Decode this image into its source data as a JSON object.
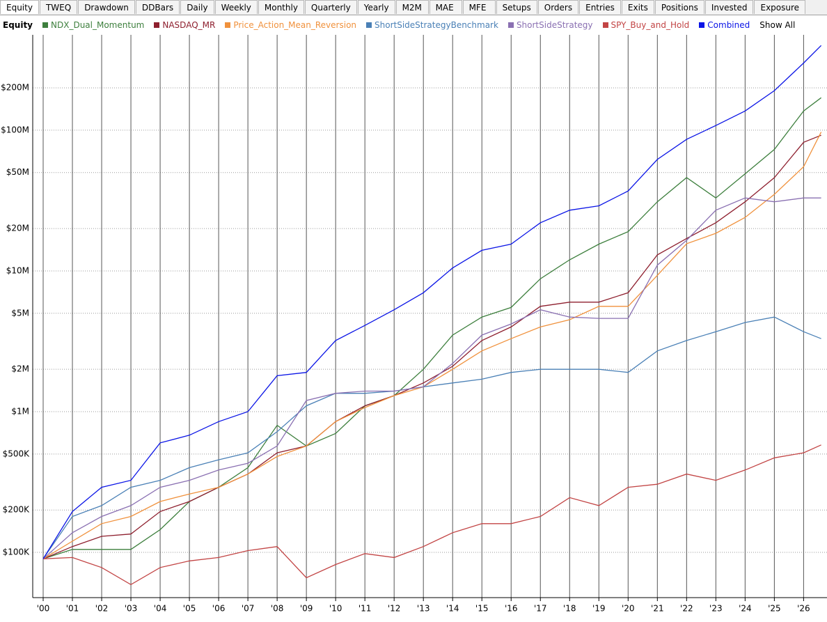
{
  "tabs": [
    "Equity",
    "TWEQ",
    "Drawdown",
    "DDBars",
    "Daily",
    "Weekly",
    "Monthly",
    "Quarterly",
    "Yearly",
    "M2M",
    "MAE",
    "MFE",
    "Setups",
    "Orders",
    "Entries",
    "Exits",
    "Positions",
    "Invested",
    "Exposure"
  ],
  "chart_data": {
    "type": "line",
    "legend_title": "Equity",
    "show_all": "Show All",
    "log_scale": true,
    "grid": true,
    "x": [
      2000,
      2001,
      2002,
      2003,
      2004,
      2005,
      2006,
      2007,
      2008,
      2009,
      2010,
      2011,
      2012,
      2013,
      2014,
      2015,
      2016,
      2017,
      2018,
      2019,
      2020,
      2021,
      2022,
      2023,
      2024,
      2025,
      2026,
      2026.6
    ],
    "xlim": [
      2000,
      2026.8
    ],
    "xticks": [
      {
        "value": 2000,
        "label": "'00"
      },
      {
        "value": 2001,
        "label": "'01"
      },
      {
        "value": 2002,
        "label": "'02"
      },
      {
        "value": 2003,
        "label": "'03"
      },
      {
        "value": 2004,
        "label": "'04"
      },
      {
        "value": 2005,
        "label": "'05"
      },
      {
        "value": 2006,
        "label": "'06"
      },
      {
        "value": 2007,
        "label": "'07"
      },
      {
        "value": 2008,
        "label": "'08"
      },
      {
        "value": 2009,
        "label": "'09"
      },
      {
        "value": 2010,
        "label": "'10"
      },
      {
        "value": 2011,
        "label": "'11"
      },
      {
        "value": 2012,
        "label": "'12"
      },
      {
        "value": 2013,
        "label": "'13"
      },
      {
        "value": 2014,
        "label": "'14"
      },
      {
        "value": 2015,
        "label": "'15"
      },
      {
        "value": 2016,
        "label": "'16"
      },
      {
        "value": 2017,
        "label": "'17"
      },
      {
        "value": 2018,
        "label": "'18"
      },
      {
        "value": 2019,
        "label": "'19"
      },
      {
        "value": 2020,
        "label": "'20"
      },
      {
        "value": 2021,
        "label": "'21"
      },
      {
        "value": 2022,
        "label": "'22"
      },
      {
        "value": 2023,
        "label": "'23"
      },
      {
        "value": 2024,
        "label": "'24"
      },
      {
        "value": 2025,
        "label": "'25"
      },
      {
        "value": 2026,
        "label": "'26"
      }
    ],
    "ylim": [
      47700,
      476000000
    ],
    "yticks": [
      {
        "value": 100000,
        "label": "$100K"
      },
      {
        "value": 200000,
        "label": "$200K"
      },
      {
        "value": 500000,
        "label": "$500K"
      },
      {
        "value": 1000000,
        "label": "$1M"
      },
      {
        "value": 2000000,
        "label": "$2M"
      },
      {
        "value": 5000000,
        "label": "$5M"
      },
      {
        "value": 10000000,
        "label": "$10M"
      },
      {
        "value": 20000000,
        "label": "$20M"
      },
      {
        "value": 50000000,
        "label": "$50M"
      },
      {
        "value": 100000000,
        "label": "$100M"
      },
      {
        "value": 200000000,
        "label": "$200M"
      }
    ],
    "series": [
      {
        "name": "NDX_Dual_Momentum",
        "color": "#3d7f3d",
        "values": [
          90000,
          105000,
          105000,
          105000,
          145000,
          230000,
          290000,
          400000,
          800000,
          570000,
          700000,
          1100000,
          1300000,
          2000000,
          3500000,
          4700000,
          5500000,
          8800000,
          12000000,
          15500000,
          19000000,
          31000000,
          46000000,
          33000000,
          49000000,
          73000000,
          137000000,
          170000000
        ]
      },
      {
        "name": "NASDAQ_MR",
        "color": "#8e1f2e",
        "values": [
          90000,
          110000,
          130000,
          135000,
          195000,
          230000,
          290000,
          360000,
          510000,
          570000,
          850000,
          1100000,
          1300000,
          1600000,
          2100000,
          3200000,
          4000000,
          5600000,
          6000000,
          6000000,
          7000000,
          13000000,
          17000000,
          22000000,
          31000000,
          46000000,
          82000000,
          92000000
        ]
      },
      {
        "name": "Price_Action_Mean_Reversion",
        "color": "#f0913c",
        "values": [
          90000,
          120000,
          160000,
          180000,
          230000,
          260000,
          290000,
          360000,
          480000,
          570000,
          850000,
          1070000,
          1300000,
          1500000,
          2000000,
          2700000,
          3300000,
          4000000,
          4500000,
          5600000,
          5600000,
          9300000,
          15600000,
          18500000,
          24000000,
          35000000,
          55000000,
          97000000
        ]
      },
      {
        "name": "ShortSideStrategyBenchmark",
        "color": "#4a80b6",
        "values": [
          90000,
          180000,
          215000,
          290000,
          325000,
          400000,
          455000,
          510000,
          720000,
          1100000,
          1350000,
          1350000,
          1400000,
          1500000,
          1600000,
          1700000,
          1900000,
          2000000,
          2000000,
          2000000,
          1900000,
          2700000,
          3200000,
          3700000,
          4300000,
          4700000,
          3700000,
          3300000
        ]
      },
      {
        "name": "ShortSideStrategy",
        "color": "#8a70b2",
        "values": [
          90000,
          138000,
          180000,
          215000,
          290000,
          325000,
          385000,
          430000,
          570000,
          1200000,
          1350000,
          1400000,
          1400000,
          1500000,
          2200000,
          3500000,
          4200000,
          5300000,
          4700000,
          4600000,
          4600000,
          11000000,
          16500000,
          27000000,
          33000000,
          31000000,
          33000000,
          33000000
        ]
      },
      {
        "name": "SPY_Buy_and_Hold",
        "color": "#c24444",
        "values": [
          90000,
          92000,
          78000,
          59000,
          78000,
          87000,
          92000,
          103000,
          110000,
          66000,
          82000,
          98000,
          92000,
          110000,
          138000,
          160000,
          160000,
          180000,
          245000,
          215000,
          290000,
          305000,
          360000,
          325000,
          385000,
          470000,
          510000,
          580000
        ]
      },
      {
        "name": "Combined",
        "color": "#0a14e6",
        "values": [
          90000,
          195000,
          290000,
          325000,
          600000,
          680000,
          850000,
          1000000,
          1800000,
          1900000,
          3200000,
          4100000,
          5300000,
          7000000,
          10500000,
          14000000,
          15500000,
          22000000,
          27000000,
          29000000,
          37000000,
          62000000,
          86000000,
          108000000,
          137000000,
          191000000,
          300000000,
          400000000
        ]
      }
    ]
  }
}
